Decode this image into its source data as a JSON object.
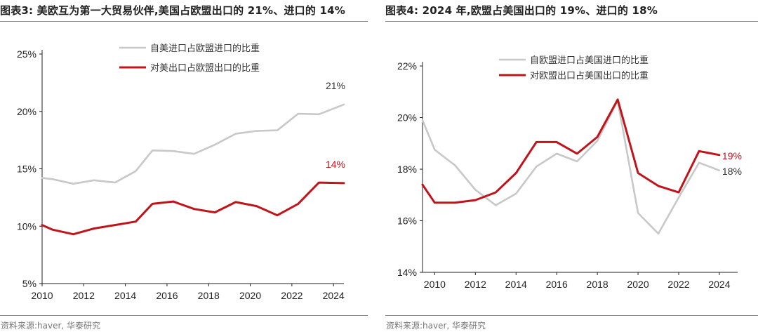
{
  "charts": [
    {
      "title": "图表3:  美欧互为第一大贸易伙伴,美国占欧盟出口的 21%、进口的 14%",
      "source": "资料来源:haver, 华泰研究",
      "chart_data": {
        "type": "line",
        "x": [
          2010,
          2011,
          2012,
          2013,
          2014,
          2015,
          2016,
          2017,
          2018,
          2019,
          2020,
          2021,
          2022,
          2023,
          2024
        ],
        "xticks": [
          "2010",
          "2012",
          "2014",
          "2016",
          "2018",
          "2020",
          "2022",
          "2024"
        ],
        "yticks": [
          "5%",
          "10%",
          "15%",
          "20%",
          "25%"
        ],
        "ylim": [
          5,
          25
        ],
        "xlim": [
          2010,
          2024.5
        ],
        "legend_position": "top",
        "series": [
          {
            "name": "自美进口占欧盟进口的比重",
            "color": "#c8c8c8",
            "values": [
              14.2,
              14.1,
              13.7,
              14.0,
              13.8,
              14.8,
              16.6,
              16.55,
              16.3,
              17.1,
              18.05,
              18.3,
              18.35,
              19.8,
              19.75,
              20.6
            ],
            "x": [
              2010,
              2010.5,
              2011.5,
              2012.5,
              2013.5,
              2014.5,
              2015.3,
              2016.3,
              2017.3,
              2018.3,
              2019.3,
              2020.3,
              2021.3,
              2022.3,
              2023.3,
              2024.5
            ],
            "end_label": "21%",
            "end_label_color": "#333333"
          },
          {
            "name": "对美出口占欧盟出口的比重",
            "color": "#c0141b",
            "values": [
              10.1,
              9.7,
              9.3,
              9.8,
              10.1,
              10.4,
              11.95,
              12.15,
              11.5,
              11.2,
              12.1,
              11.75,
              10.95,
              11.95,
              13.8,
              13.75
            ],
            "x": [
              2010,
              2010.5,
              2011.5,
              2012.5,
              2013.5,
              2014.5,
              2015.3,
              2016.3,
              2017.3,
              2018.3,
              2019.3,
              2020.3,
              2021.3,
              2022.3,
              2023.3,
              2024.5
            ],
            "end_label": "14%",
            "end_label_color": "#c0141b"
          }
        ]
      }
    },
    {
      "title": "图表4:  2024 年,欧盟占美国出口的 19%、进口的 18%",
      "source": "资料来源:haver, 华泰研究",
      "chart_data": {
        "type": "line",
        "xticks": [
          "2010",
          "2012",
          "2014",
          "2016",
          "2018",
          "2020",
          "2022",
          "2024"
        ],
        "yticks": [
          "14%",
          "16%",
          "18%",
          "20%",
          "22%"
        ],
        "ylim": [
          14,
          22
        ],
        "xlim": [
          2009.4,
          2024.9
        ],
        "legend_position": "top",
        "series": [
          {
            "name": "自欧盟进口占美国进口的比重",
            "color": "#c8c8c8",
            "x": [
              2009.4,
              2010,
              2011,
              2012,
              2013,
              2014,
              2015,
              2016,
              2017,
              2018,
              2019,
              2020,
              2021,
              2022,
              2023,
              2024
            ],
            "values": [
              19.9,
              18.75,
              18.15,
              17.2,
              16.6,
              17.05,
              18.1,
              18.6,
              18.3,
              19.1,
              20.65,
              16.3,
              15.5,
              16.9,
              18.25,
              17.95
            ],
            "end_label": "18%",
            "end_label_color": "#333333"
          },
          {
            "name": "对欧盟出口占美国出口的比重",
            "color": "#c0141b",
            "x": [
              2009.4,
              2010,
              2011,
              2012,
              2013,
              2014,
              2015,
              2016,
              2017,
              2018,
              2019,
              2020,
              2021,
              2022,
              2023,
              2024
            ],
            "values": [
              17.4,
              16.7,
              16.7,
              16.8,
              17.1,
              17.85,
              19.05,
              19.05,
              18.6,
              19.25,
              20.7,
              17.85,
              17.35,
              17.1,
              18.7,
              18.55
            ],
            "end_label": "19%",
            "end_label_color": "#c0141b"
          }
        ]
      }
    }
  ]
}
